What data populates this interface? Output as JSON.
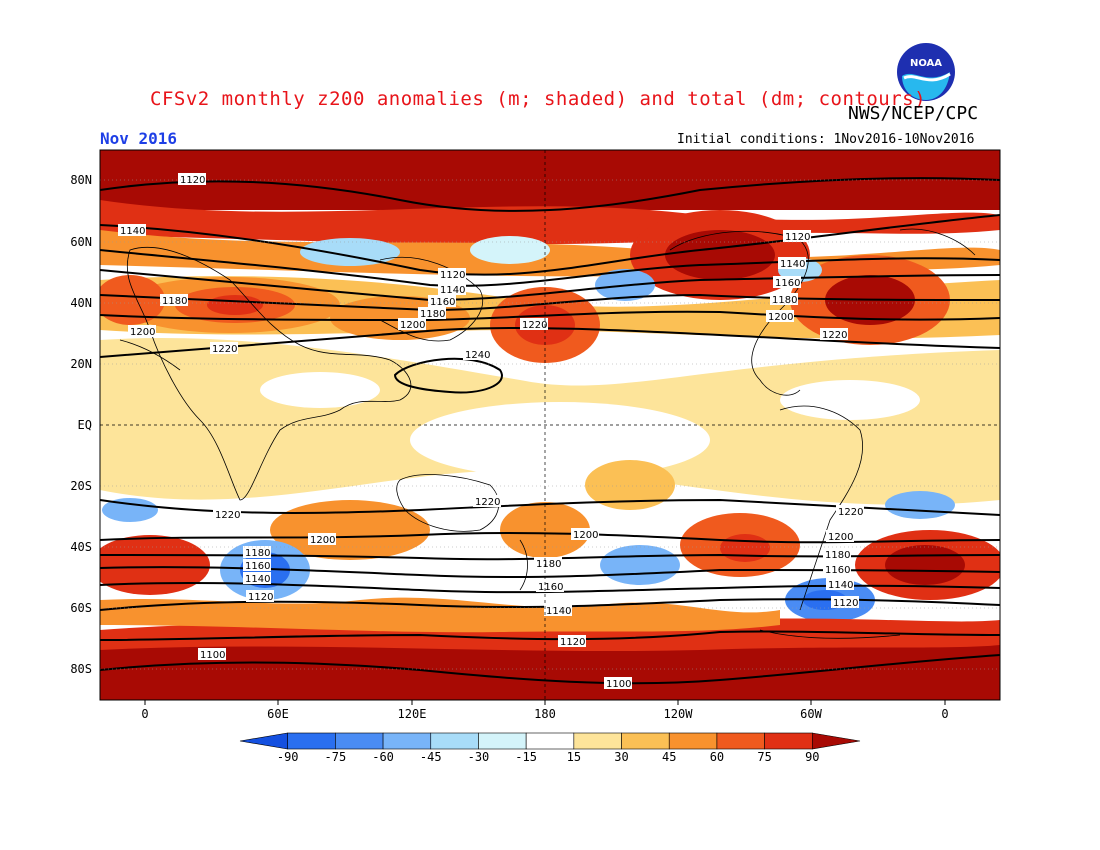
{
  "header": {
    "title": "CFSv2 monthly z200 anomalies (m; shaded) and total (dm; contours)",
    "agency": "NWS/NCEP/CPC",
    "period": "Nov 2016",
    "initial_conditions": "Initial conditions: 1Nov2016-10Nov2016",
    "logo_text": "NOAA"
  },
  "axes": {
    "lat_labels": [
      "80N",
      "60N",
      "40N",
      "20N",
      "EQ",
      "20S",
      "40S",
      "60S",
      "80S"
    ],
    "lon_labels": [
      "0",
      "60E",
      "120E",
      "180",
      "120W",
      "60W",
      "0"
    ]
  },
  "colorbar": {
    "labels": [
      "-90",
      "-75",
      "-60",
      "-45",
      "-30",
      "-15",
      "15",
      "30",
      "45",
      "60",
      "75",
      "90"
    ],
    "colors": [
      "#1450e0",
      "#2a6ff0",
      "#4a8cf4",
      "#78b4f8",
      "#a8dcf8",
      "#d4f4fa",
      "#ffffff",
      "#fde49a",
      "#fbc055",
      "#f8922e",
      "#f05a1e",
      "#e03014",
      "#a80a04"
    ]
  },
  "contour_labels": [
    "1100",
    "1120",
    "1140",
    "1160",
    "1180",
    "1200",
    "1220",
    "1240"
  ],
  "colors": {
    "title": "#e8141a",
    "period": "#1e3fe6",
    "ocean_zero": "#ffffff"
  }
}
